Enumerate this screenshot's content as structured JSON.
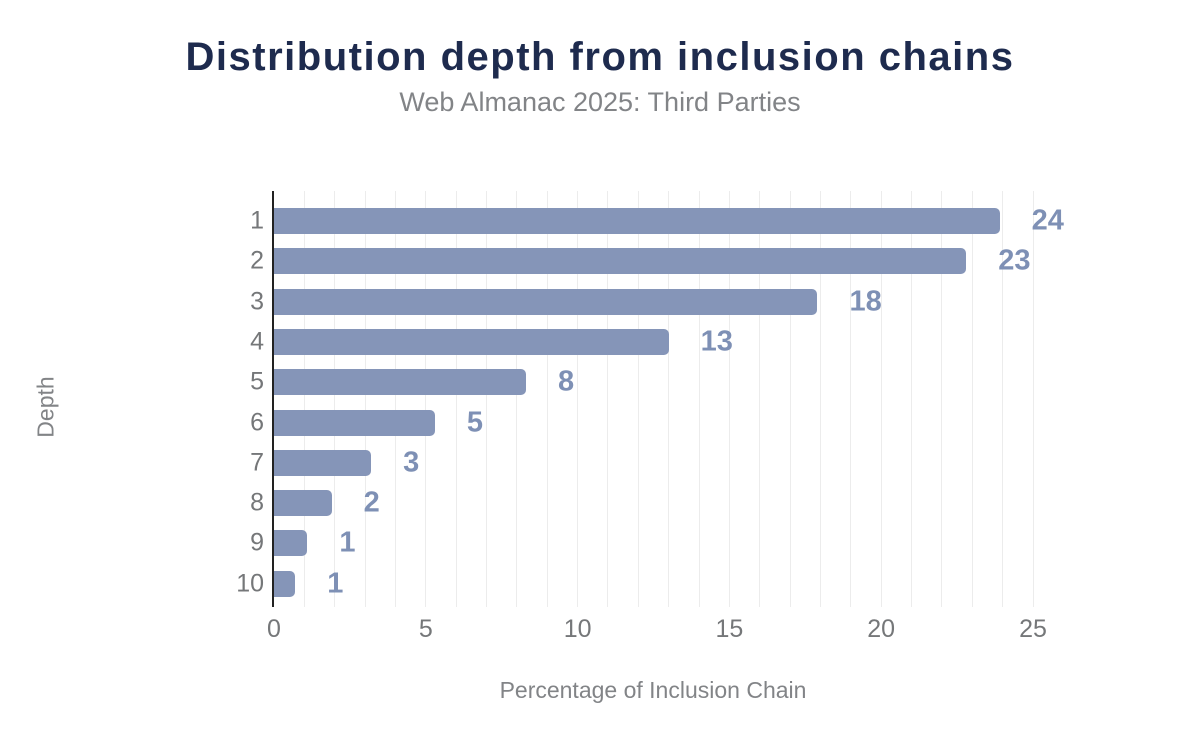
{
  "header": {
    "title": "Distribution depth from inclusion chains",
    "subtitle": "Web Almanac 2025: Third Parties"
  },
  "chart_data": {
    "type": "bar",
    "orientation": "horizontal",
    "title": "Distribution depth from inclusion chains",
    "subtitle": "Web Almanac 2025: Third Parties",
    "xlabel": "Percentage of Inclusion Chain",
    "ylabel": "Depth",
    "categories": [
      "1",
      "2",
      "3",
      "4",
      "5",
      "6",
      "7",
      "8",
      "9",
      "10"
    ],
    "values": [
      23.9,
      22.8,
      17.9,
      13.0,
      8.3,
      5.3,
      3.2,
      1.9,
      1.1,
      0.7
    ],
    "value_labels": [
      "24",
      "23",
      "18",
      "13",
      "8",
      "5",
      "3",
      "2",
      "1",
      "1"
    ],
    "xlim": [
      0,
      25
    ],
    "x_ticks": [
      0,
      5,
      10,
      15,
      20,
      25
    ],
    "minor_grid_step": 1,
    "grid": "vertical-minor-gridlines",
    "legend": "none"
  },
  "colors": {
    "background": "#ffffff",
    "bar": "#8595b8",
    "value_label": "#7e90b5",
    "title": "#1e2b4e",
    "subtitle": "#828487",
    "axis_tick": "#757779",
    "axis_line": "#222222",
    "gridline": "#ececec"
  }
}
